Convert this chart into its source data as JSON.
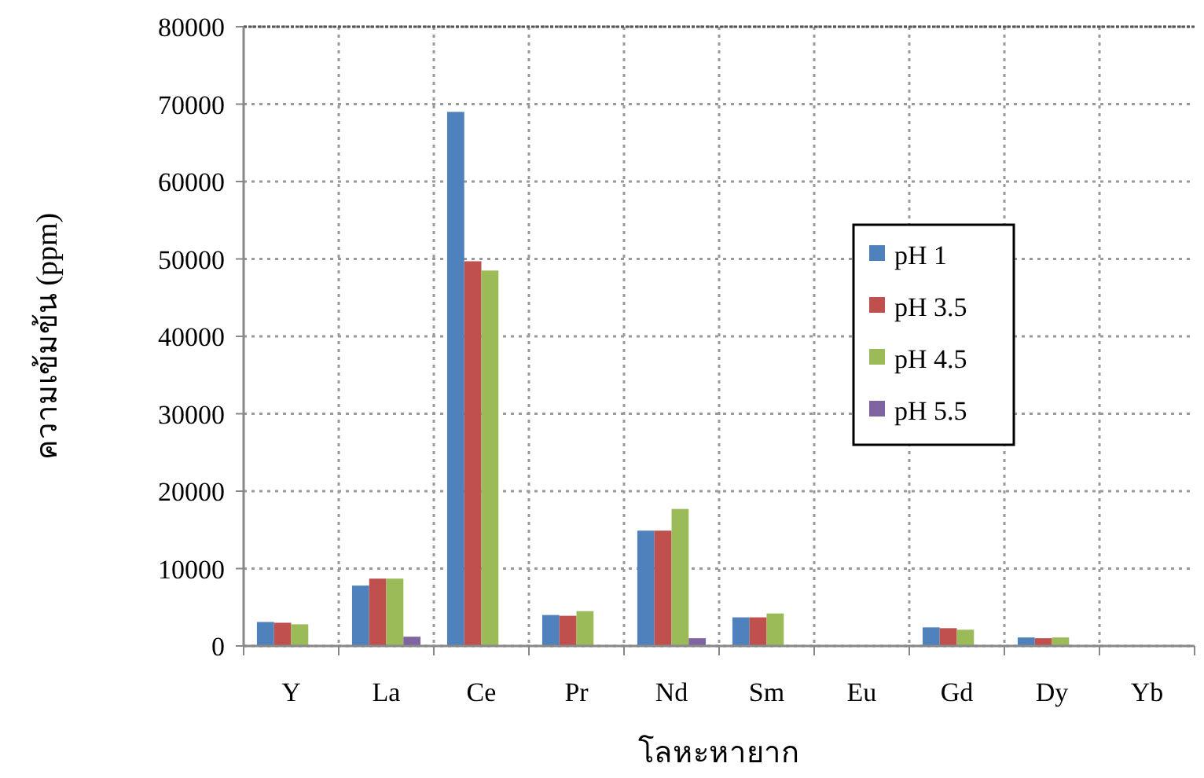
{
  "chart_data": {
    "type": "bar",
    "xlabel": "โลหะหายาก",
    "ylabel": "ความเข้มข้น (ppm)",
    "categories": [
      "Y",
      "La",
      "Ce",
      "Pr",
      "Nd",
      "Sm",
      "Eu",
      "Gd",
      "Dy",
      "Yb"
    ],
    "series": [
      {
        "name": "pH 1",
        "color": "#4f81bd",
        "values": [
          3100,
          7800,
          69000,
          4000,
          14900,
          3700,
          0,
          2400,
          1100,
          0
        ]
      },
      {
        "name": "pH 3.5",
        "color": "#c0504d",
        "values": [
          3000,
          8700,
          49700,
          3900,
          14900,
          3700,
          0,
          2300,
          1000,
          0
        ]
      },
      {
        "name": "pH 4.5",
        "color": "#9bbb59",
        "values": [
          2800,
          8700,
          48500,
          4500,
          17700,
          4200,
          0,
          2100,
          1100,
          0
        ]
      },
      {
        "name": "pH 5.5",
        "color": "#8064a2",
        "values": [
          0,
          1200,
          0,
          0,
          1000,
          0,
          0,
          0,
          0,
          0
        ]
      }
    ],
    "ylim": [
      0,
      80000
    ],
    "yticks": [
      0,
      10000,
      20000,
      30000,
      40000,
      50000,
      60000,
      70000,
      80000
    ],
    "grid": true,
    "legend": "right"
  }
}
